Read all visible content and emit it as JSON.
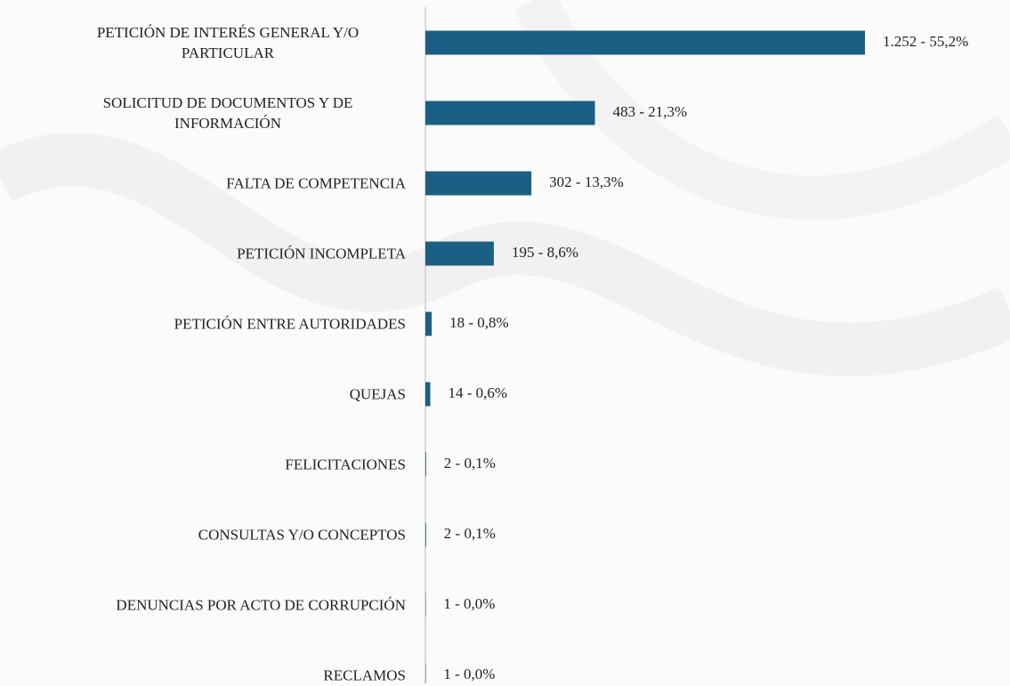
{
  "chart_data": {
    "type": "bar",
    "orientation": "horizontal",
    "color": "#1b5f84",
    "categories": [
      "PETICIÓN DE INTERÉS GENERAL Y/O PARTICULAR",
      "SOLICITUD DE DOCUMENTOS Y DE INFORMACIÓN",
      "FALTA DE COMPETENCIA",
      "PETICIÓN INCOMPLETA",
      "PETICIÓN ENTRE AUTORIDADES",
      "QUEJAS",
      "FELICITACIONES",
      "CONSULTAS Y/O CONCEPTOS",
      "DENUNCIAS POR ACTO DE CORRUPCIÓN",
      "RECLAMOS"
    ],
    "values": [
      1252,
      483,
      302,
      195,
      18,
      14,
      2,
      2,
      1,
      1
    ],
    "value_labels": [
      "1.252 - 55,2%",
      "483 - 21,3%",
      "302 - 13,3%",
      "195 - 8,6%",
      "18 - 0,8%",
      "14 - 0,6%",
      "2  - 0,1%",
      "2 - 0,1%",
      "1 - 0,0%",
      "1 - 0,0%"
    ]
  }
}
